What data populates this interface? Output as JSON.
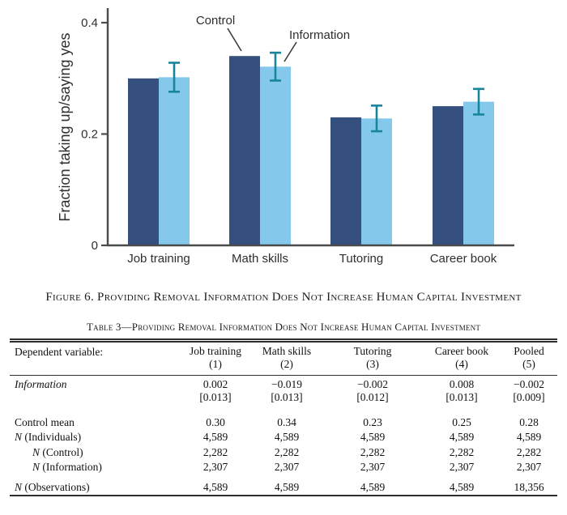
{
  "figure_caption": "Figure 6. Providing Removal Information Does Not Increase Human Capital Investment",
  "chart_data": {
    "type": "bar",
    "title": "",
    "xlabel": "",
    "ylabel": "Fraction taking up/saying yes",
    "ylim": [
      0,
      0.42
    ],
    "yticks": [
      0,
      0.2,
      0.4
    ],
    "grid": false,
    "legend_position": "on-plot annotations with leader lines",
    "categories": [
      "Job training",
      "Math skills",
      "Tutoring",
      "Career book"
    ],
    "series": [
      {
        "name": "Control",
        "color": "#35507e",
        "values": [
          0.3,
          0.34,
          0.23,
          0.25
        ]
      },
      {
        "name": "Information",
        "color": "#84c9ec",
        "values": [
          0.302,
          0.321,
          0.228,
          0.258
        ],
        "errors": [
          0.026,
          0.025,
          0.023,
          0.023
        ],
        "error_color": "#17869a"
      }
    ],
    "annotations": [
      {
        "text": "Control",
        "points_to": "Math skills Control bar"
      },
      {
        "text": "Information",
        "points_to": "Math skills Information bar"
      }
    ]
  },
  "table": {
    "title": "Table 3—Providing Removal Information Does Not Increase Human Capital Investment",
    "header": {
      "label": "Dependent variable:",
      "columns": [
        "Job training",
        "Math skills",
        "Tutoring",
        "Career book",
        "Pooled"
      ],
      "numbers": [
        "(1)",
        "(2)",
        "(3)",
        "(4)",
        "(5)"
      ]
    },
    "rows": [
      {
        "label": "Information",
        "italic": true,
        "values": [
          "0.002",
          "−0.019",
          "−0.002",
          "0.008",
          "−0.002"
        ],
        "brackets": [
          "[0.013]",
          "[0.013]",
          "[0.012]",
          "[0.013]",
          "[0.009]"
        ]
      },
      {
        "label": "Control mean",
        "gap": "large",
        "values": [
          "0.30",
          "0.34",
          "0.23",
          "0.25",
          "0.28"
        ]
      },
      {
        "label": "N (Individuals)",
        "italic_n": true,
        "values": [
          "4,589",
          "4,589",
          "4,589",
          "4,589",
          "4,589"
        ]
      },
      {
        "label": "N (Control)",
        "italic_n": true,
        "indent": true,
        "values": [
          "2,282",
          "2,282",
          "2,282",
          "2,282",
          "2,282"
        ]
      },
      {
        "label": "N (Information)",
        "italic_n": true,
        "indent": true,
        "values": [
          "2,307",
          "2,307",
          "2,307",
          "2,307",
          "2,307"
        ]
      },
      {
        "label": "N (Observations)",
        "italic_n": true,
        "gap": "small",
        "values": [
          "4,589",
          "4,589",
          "4,589",
          "4,589",
          "18,356"
        ]
      }
    ]
  }
}
